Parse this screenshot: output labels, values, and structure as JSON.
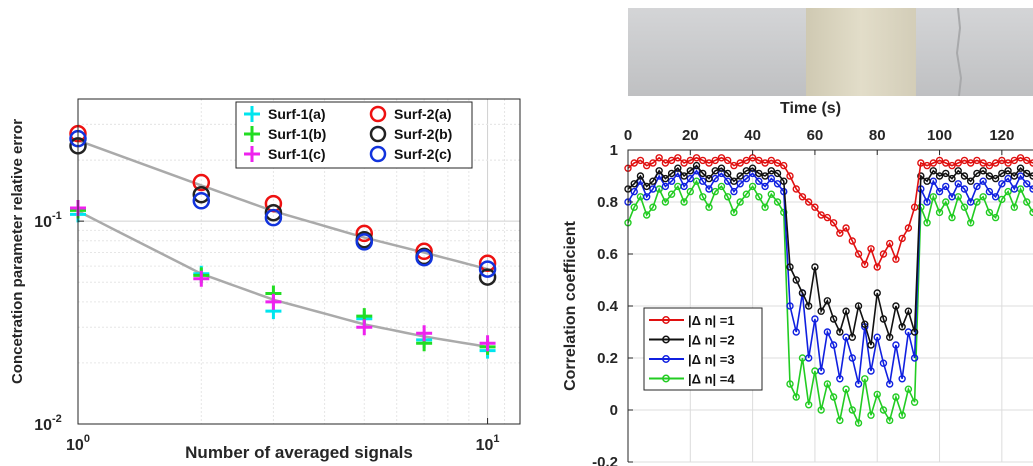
{
  "chart_data": [
    {
      "type": "scatter",
      "title": "",
      "xlabel": "Number of averaged signals",
      "ylabel": "Concetration parameter relative error",
      "xscale": "log",
      "yscale": "log",
      "xlim": [
        1,
        12
      ],
      "ylim": [
        0.01,
        0.4
      ],
      "xticks": [
        {
          "v": 1,
          "base": "10",
          "exp": "0"
        },
        {
          "v": 10,
          "base": "10",
          "exp": "1"
        }
      ],
      "yticks": [
        {
          "v": 0.01,
          "base": "10",
          "exp": "-2"
        },
        {
          "v": 0.1,
          "base": "10",
          "exp": "-1"
        }
      ],
      "grid": true,
      "legend_position": "top-right",
      "series": [
        {
          "name": "Surf-1(a)",
          "marker": "plus",
          "color": "#00e5ee",
          "x": [
            1,
            2,
            3,
            5,
            7,
            10
          ],
          "y": [
            0.108,
            0.055,
            0.036,
            0.033,
            0.026,
            0.023
          ]
        },
        {
          "name": "Surf-1(b)",
          "marker": "plus",
          "color": "#22dd22",
          "x": [
            1,
            2,
            3,
            5,
            7,
            10
          ],
          "y": [
            0.113,
            0.054,
            0.044,
            0.034,
            0.025,
            0.024
          ]
        },
        {
          "name": "Surf-1(c)",
          "marker": "plus",
          "color": "#ee22ee",
          "x": [
            1,
            2,
            3,
            5,
            7,
            10
          ],
          "y": [
            0.116,
            0.052,
            0.04,
            0.03,
            0.028,
            0.025
          ]
        },
        {
          "name": "Surf-2(a)",
          "marker": "circle",
          "color": "#ee1111",
          "x": [
            1,
            2,
            3,
            5,
            7,
            10
          ],
          "y": [
            0.27,
            0.155,
            0.122,
            0.087,
            0.071,
            0.062
          ]
        },
        {
          "name": "Surf-2(b)",
          "marker": "circle",
          "color": "#222222",
          "x": [
            1,
            2,
            3,
            5,
            7,
            10
          ],
          "y": [
            0.235,
            0.135,
            0.11,
            0.081,
            0.067,
            0.053
          ]
        },
        {
          "name": "Surf-2(c)",
          "marker": "circle",
          "color": "#1133dd",
          "x": [
            1,
            2,
            3,
            5,
            7,
            10
          ],
          "y": [
            0.255,
            0.126,
            0.104,
            0.079,
            0.066,
            0.058
          ]
        }
      ],
      "fits": [
        {
          "color": "#aaaaaa",
          "x": [
            1,
            2,
            3,
            5,
            7,
            10
          ],
          "y": [
            0.25,
            0.15,
            0.112,
            0.083,
            0.07,
            0.058
          ]
        },
        {
          "color": "#aaaaaa",
          "x": [
            1,
            2,
            3,
            5,
            7,
            10
          ],
          "y": [
            0.112,
            0.055,
            0.041,
            0.031,
            0.027,
            0.024
          ]
        }
      ]
    },
    {
      "type": "line",
      "title": "",
      "xlabel": "Time (s)",
      "xlabel_position": "top",
      "ylabel": "Correlation coefficient",
      "xlim": [
        0,
        130
      ],
      "ylim": [
        -0.2,
        1
      ],
      "xticks": [
        0,
        20,
        40,
        60,
        80,
        100,
        120
      ],
      "yticks": [
        -0.2,
        0,
        0.2,
        0.4,
        0.6,
        0.8,
        1
      ],
      "grid": true,
      "legend_position": "bottom-left",
      "series": [
        {
          "name": "|Δ n| =1",
          "color": "#e01010",
          "x": [
            0,
            2,
            4,
            6,
            8,
            10,
            12,
            14,
            16,
            18,
            20,
            22,
            24,
            26,
            28,
            30,
            32,
            34,
            36,
            38,
            40,
            42,
            44,
            46,
            48,
            50,
            52,
            54,
            56,
            58,
            60,
            62,
            64,
            66,
            68,
            70,
            72,
            74,
            76,
            78,
            80,
            82,
            84,
            86,
            88,
            90,
            92,
            94,
            96,
            98,
            100,
            102,
            104,
            106,
            108,
            110,
            112,
            114,
            116,
            118,
            120,
            122,
            124,
            126,
            128,
            130
          ],
          "y": [
            0.93,
            0.95,
            0.96,
            0.94,
            0.95,
            0.97,
            0.95,
            0.96,
            0.97,
            0.95,
            0.96,
            0.97,
            0.96,
            0.95,
            0.96,
            0.97,
            0.96,
            0.94,
            0.95,
            0.96,
            0.97,
            0.96,
            0.95,
            0.96,
            0.95,
            0.94,
            0.9,
            0.85,
            0.82,
            0.8,
            0.78,
            0.75,
            0.74,
            0.72,
            0.68,
            0.7,
            0.65,
            0.6,
            0.56,
            0.62,
            0.55,
            0.6,
            0.64,
            0.58,
            0.66,
            0.7,
            0.78,
            0.95,
            0.94,
            0.95,
            0.96,
            0.95,
            0.94,
            0.95,
            0.96,
            0.95,
            0.96,
            0.95,
            0.94,
            0.95,
            0.96,
            0.95,
            0.96,
            0.97,
            0.96,
            0.95
          ]
        },
        {
          "name": "|Δ n| =2",
          "color": "#111111",
          "x": [
            0,
            2,
            4,
            6,
            8,
            10,
            12,
            14,
            16,
            18,
            20,
            22,
            24,
            26,
            28,
            30,
            32,
            34,
            36,
            38,
            40,
            42,
            44,
            46,
            48,
            50,
            52,
            54,
            56,
            58,
            60,
            62,
            64,
            66,
            68,
            70,
            72,
            74,
            76,
            78,
            80,
            82,
            84,
            86,
            88,
            90,
            92,
            94,
            96,
            98,
            100,
            102,
            104,
            106,
            108,
            110,
            112,
            114,
            116,
            118,
            120,
            122,
            124,
            126,
            128,
            130
          ],
          "y": [
            0.85,
            0.87,
            0.9,
            0.86,
            0.88,
            0.92,
            0.89,
            0.91,
            0.93,
            0.9,
            0.92,
            0.94,
            0.91,
            0.89,
            0.92,
            0.93,
            0.91,
            0.88,
            0.9,
            0.92,
            0.93,
            0.91,
            0.9,
            0.92,
            0.91,
            0.88,
            0.55,
            0.5,
            0.45,
            0.4,
            0.55,
            0.38,
            0.42,
            0.35,
            0.3,
            0.38,
            0.28,
            0.4,
            0.33,
            0.25,
            0.45,
            0.35,
            0.28,
            0.4,
            0.32,
            0.38,
            0.3,
            0.9,
            0.88,
            0.92,
            0.9,
            0.91,
            0.89,
            0.92,
            0.9,
            0.88,
            0.91,
            0.92,
            0.9,
            0.89,
            0.91,
            0.92,
            0.9,
            0.93,
            0.91,
            0.9
          ]
        },
        {
          "name": "|Δ n| =3",
          "color": "#1020e0",
          "x": [
            0,
            2,
            4,
            6,
            8,
            10,
            12,
            14,
            16,
            18,
            20,
            22,
            24,
            26,
            28,
            30,
            32,
            34,
            36,
            38,
            40,
            42,
            44,
            46,
            48,
            50,
            52,
            54,
            56,
            58,
            60,
            62,
            64,
            66,
            68,
            70,
            72,
            74,
            76,
            78,
            80,
            82,
            84,
            86,
            88,
            90,
            92,
            94,
            96,
            98,
            100,
            102,
            104,
            106,
            108,
            110,
            112,
            114,
            116,
            118,
            120,
            122,
            124,
            126,
            128,
            130
          ],
          "y": [
            0.8,
            0.84,
            0.88,
            0.82,
            0.85,
            0.9,
            0.86,
            0.88,
            0.91,
            0.86,
            0.89,
            0.92,
            0.88,
            0.85,
            0.89,
            0.91,
            0.88,
            0.84,
            0.87,
            0.89,
            0.91,
            0.88,
            0.86,
            0.89,
            0.87,
            0.84,
            0.4,
            0.3,
            0.45,
            0.2,
            0.35,
            0.15,
            0.3,
            0.25,
            0.12,
            0.28,
            0.2,
            0.1,
            0.32,
            0.15,
            0.28,
            0.18,
            0.1,
            0.25,
            0.12,
            0.3,
            0.2,
            0.85,
            0.8,
            0.88,
            0.84,
            0.86,
            0.82,
            0.87,
            0.85,
            0.8,
            0.86,
            0.88,
            0.84,
            0.82,
            0.87,
            0.89,
            0.85,
            0.9,
            0.87,
            0.85
          ]
        },
        {
          "name": "|Δ n| =4",
          "color": "#22cc22",
          "x": [
            0,
            2,
            4,
            6,
            8,
            10,
            12,
            14,
            16,
            18,
            20,
            22,
            24,
            26,
            28,
            30,
            32,
            34,
            36,
            38,
            40,
            42,
            44,
            46,
            48,
            50,
            52,
            54,
            56,
            58,
            60,
            62,
            64,
            66,
            68,
            70,
            72,
            74,
            76,
            78,
            80,
            82,
            84,
            86,
            88,
            90,
            92,
            94,
            96,
            98,
            100,
            102,
            104,
            106,
            108,
            110,
            112,
            114,
            116,
            118,
            120,
            122,
            124,
            126,
            128,
            130
          ],
          "y": [
            0.72,
            0.78,
            0.82,
            0.75,
            0.78,
            0.85,
            0.8,
            0.83,
            0.86,
            0.8,
            0.84,
            0.88,
            0.82,
            0.78,
            0.84,
            0.86,
            0.82,
            0.76,
            0.8,
            0.83,
            0.86,
            0.82,
            0.78,
            0.83,
            0.8,
            0.76,
            0.1,
            0.05,
            0.2,
            0.02,
            0.15,
            0.0,
            0.1,
            0.05,
            -0.04,
            0.08,
            0.0,
            -0.05,
            0.12,
            -0.02,
            0.06,
            0.0,
            -0.04,
            0.05,
            -0.02,
            0.08,
            0.03,
            0.78,
            0.72,
            0.82,
            0.76,
            0.8,
            0.74,
            0.82,
            0.78,
            0.72,
            0.8,
            0.82,
            0.76,
            0.74,
            0.81,
            0.84,
            0.78,
            0.85,
            0.8,
            0.76
          ]
        }
      ]
    }
  ],
  "photo": {
    "background_color": "#c9cacc",
    "sample_color": "#dcd8c5",
    "crack_color": "#a9aaac"
  }
}
